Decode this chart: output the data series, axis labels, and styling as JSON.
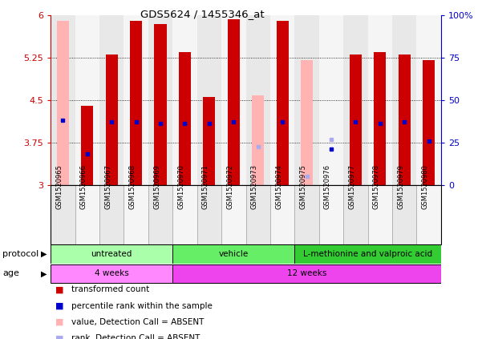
{
  "title": "GDS5624 / 1455346_at",
  "samples": [
    "GSM1520965",
    "GSM1520966",
    "GSM1520967",
    "GSM1520968",
    "GSM1520969",
    "GSM1520970",
    "GSM1520971",
    "GSM1520972",
    "GSM1520973",
    "GSM1520974",
    "GSM1520975",
    "GSM1520976",
    "GSM1520977",
    "GSM1520978",
    "GSM1520979",
    "GSM1520980"
  ],
  "ylim": [
    3.0,
    6.0
  ],
  "yticks": [
    3.0,
    3.75,
    4.5,
    5.25,
    6.0
  ],
  "ytick_labels": [
    "3",
    "3.75",
    "4.5",
    "5.25",
    "6"
  ],
  "right_yticks": [
    0,
    25,
    50,
    75,
    100
  ],
  "right_ytick_labels": [
    "0",
    "25",
    "50",
    "75",
    "100%"
  ],
  "bar_bottom": 3.0,
  "transformed_counts": [
    null,
    4.4,
    5.3,
    5.9,
    5.85,
    5.35,
    4.55,
    5.93,
    null,
    5.9,
    null,
    null,
    5.3,
    5.35,
    5.3,
    5.2
  ],
  "percentile_ranks": [
    38,
    18,
    37,
    37,
    36,
    36,
    36,
    37,
    null,
    37,
    null,
    21,
    37,
    36,
    37,
    26
  ],
  "absent_values": [
    5.9,
    null,
    null,
    null,
    null,
    null,
    null,
    null,
    4.58,
    null,
    5.2,
    null,
    null,
    null,
    null,
    null
  ],
  "absent_ranks": [
    null,
    null,
    null,
    null,
    null,
    null,
    null,
    null,
    3.68,
    null,
    3.15,
    3.8,
    null,
    null,
    null,
    null
  ],
  "bar_color_present": "#cc0000",
  "bar_color_absent_val": "#ffb3b3",
  "dot_color_present": "#0000cc",
  "dot_color_absent": "#aaaaee",
  "col_bg_even": "#e8e8e8",
  "col_bg_odd": "#f5f5f5",
  "protocol_groups": [
    {
      "label": "untreated",
      "start": 0,
      "end": 5,
      "color": "#aaffaa"
    },
    {
      "label": "vehicle",
      "start": 5,
      "end": 10,
      "color": "#66ee66"
    },
    {
      "label": "L-methionine and valproic acid",
      "start": 10,
      "end": 16,
      "color": "#33cc33"
    }
  ],
  "age_groups": [
    {
      "label": "4 weeks",
      "start": 0,
      "end": 5,
      "color": "#ff88ff"
    },
    {
      "label": "12 weeks",
      "start": 5,
      "end": 16,
      "color": "#ee44ee"
    }
  ],
  "protocol_label": "protocol",
  "age_label": "age",
  "legend_items": [
    {
      "color": "#cc0000",
      "label": "transformed count"
    },
    {
      "color": "#0000cc",
      "label": "percentile rank within the sample"
    },
    {
      "color": "#ffb3b3",
      "label": "value, Detection Call = ABSENT"
    },
    {
      "color": "#aaaaee",
      "label": "rank, Detection Call = ABSENT"
    }
  ],
  "bg_color": "#ffffff",
  "tick_color_left": "#cc0000",
  "tick_color_right": "#0000cc"
}
